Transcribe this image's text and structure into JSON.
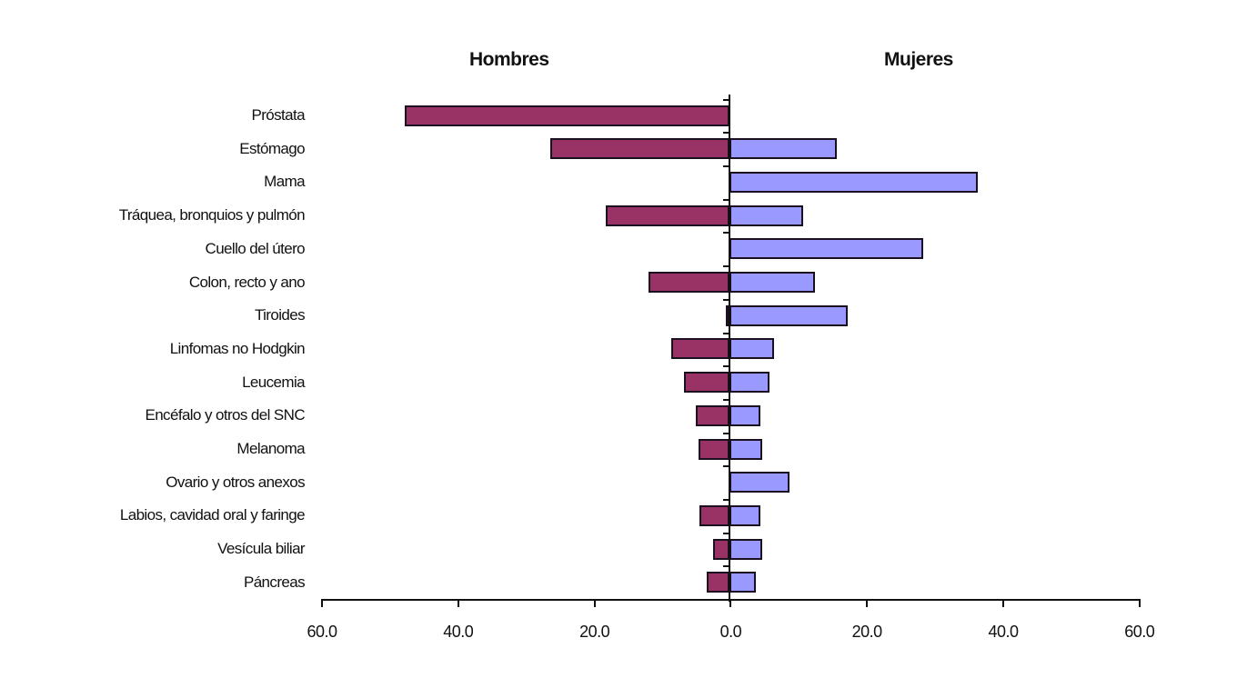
{
  "chart_data": {
    "type": "bar",
    "orientation": "horizontal",
    "layout": "population-pyramid (diverging)",
    "title": "",
    "panel_titles": {
      "left": "Hombres",
      "right": "Mujeres"
    },
    "categories": [
      "Próstata",
      "Estómago",
      "Mama",
      "Tráquea, bronquios y pulmón",
      "Cuello del útero",
      "Colon, recto y ano",
      "Tiroides",
      "Linfomas no Hodgkin",
      "Leucemia",
      "Encéfalo y otros del SNC",
      "Melanoma",
      "Ovario y otros anexos",
      "Labios, cavidad oral y faringe",
      "Vesícula biliar",
      "Páncreas"
    ],
    "series": [
      {
        "name": "Hombres",
        "color": "#993366",
        "values": [
          47.7,
          26.3,
          0,
          18.2,
          0,
          11.9,
          0.6,
          8.5,
          6.7,
          4.9,
          4.5,
          0,
          4.4,
          2.4,
          3.3
        ]
      },
      {
        "name": "Mujeres",
        "color": "#9999ff",
        "values": [
          0,
          15.8,
          36.4,
          10.8,
          28.4,
          12.5,
          17.4,
          6.5,
          5.9,
          4.5,
          4.8,
          8.8,
          4.5,
          4.8,
          3.9
        ]
      }
    ],
    "xlabel": "",
    "ylabel": "",
    "x_tick_labels": [
      "60.0",
      "40.0",
      "20.0",
      "0.0",
      "20.0",
      "40.0",
      "60.0"
    ],
    "xlim": [
      -60,
      60
    ],
    "grid": false,
    "legend": "none (panel headers used instead)"
  }
}
